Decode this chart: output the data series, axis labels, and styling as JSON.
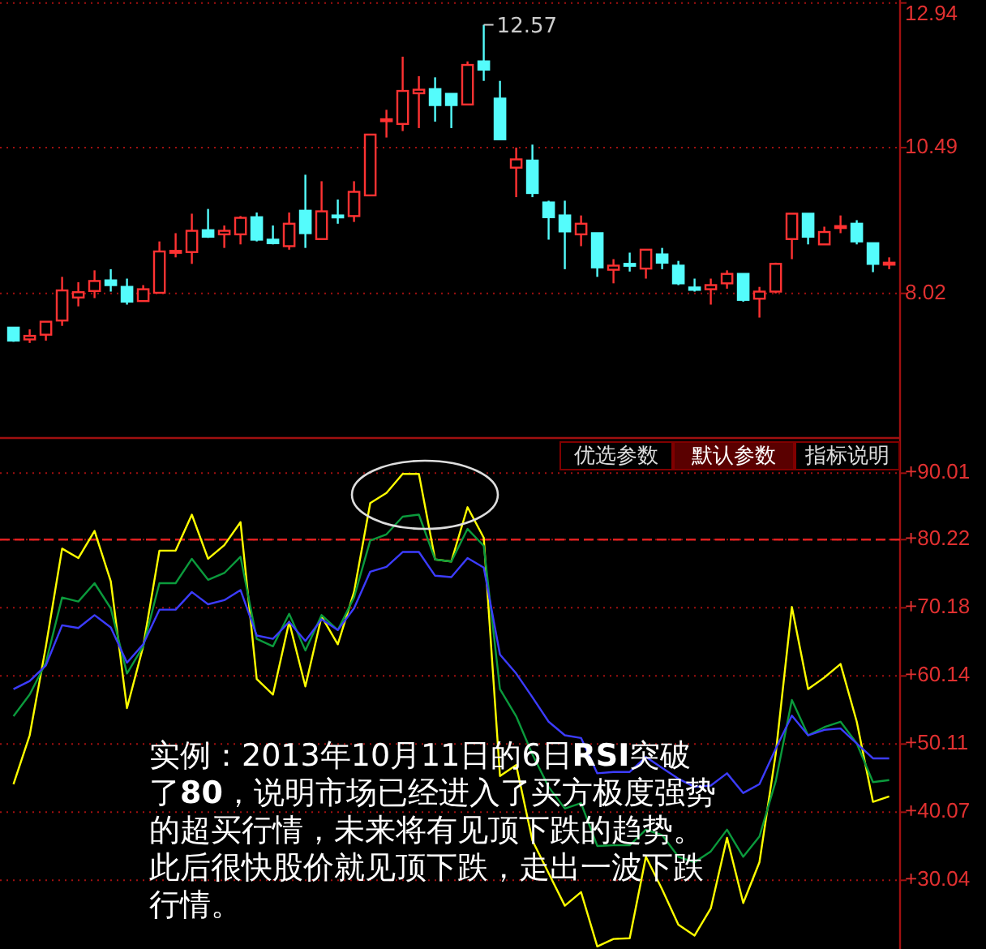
{
  "chart_data": [
    {
      "type": "candlestick",
      "categories": [
        null,
        null,
        null,
        null,
        null,
        null,
        null,
        null,
        null,
        null,
        null,
        null,
        null,
        null,
        null,
        null,
        null,
        null,
        null,
        null,
        null,
        null,
        null,
        null,
        null,
        null,
        null,
        null,
        null,
        null,
        null,
        null,
        null,
        null,
        null,
        null,
        null,
        null,
        null,
        null,
        null,
        null,
        null,
        null,
        null,
        null,
        null,
        null,
        null,
        null,
        null,
        null,
        null,
        null,
        null
      ],
      "ohlc": [
        [
          7.44,
          7.44,
          7.2,
          7.22
        ],
        [
          7.24,
          7.41,
          7.18,
          7.3
        ],
        [
          7.32,
          7.54,
          7.22,
          7.54
        ],
        [
          7.56,
          8.3,
          7.47,
          8.07
        ],
        [
          7.95,
          8.21,
          7.8,
          8.04
        ],
        [
          8.06,
          8.41,
          7.94,
          8.23
        ],
        [
          8.24,
          8.43,
          8.05,
          8.16
        ],
        [
          8.13,
          8.27,
          7.83,
          7.88
        ],
        [
          7.89,
          8.16,
          7.89,
          8.09
        ],
        [
          8.03,
          8.9,
          8.03,
          8.73
        ],
        [
          8.73,
          9.04,
          8.63,
          8.74
        ],
        [
          8.72,
          9.37,
          8.52,
          9.08
        ],
        [
          9.09,
          9.45,
          8.96,
          8.98
        ],
        [
          9.02,
          9.17,
          8.79,
          9.08
        ],
        [
          9.02,
          9.33,
          8.85,
          9.3
        ],
        [
          9.31,
          9.39,
          8.9,
          8.93
        ],
        [
          8.93,
          9.17,
          8.85,
          8.87
        ],
        [
          8.82,
          9.39,
          8.76,
          9.2
        ],
        [
          9.42,
          10.03,
          8.79,
          9.04
        ],
        [
          8.94,
          9.92,
          8.94,
          9.41
        ],
        [
          9.34,
          9.61,
          9.2,
          9.32
        ],
        [
          9.33,
          9.92,
          9.23,
          9.74
        ],
        [
          9.68,
          10.71,
          9.68,
          10.71
        ],
        [
          10.94,
          11.13,
          10.66,
          10.97
        ],
        [
          10.89,
          12.03,
          10.77,
          11.45
        ],
        [
          11.41,
          11.7,
          10.82,
          11.47
        ],
        [
          11.48,
          11.68,
          10.93,
          11.21
        ],
        [
          11.4,
          11.4,
          10.82,
          11.21
        ],
        [
          11.22,
          11.95,
          11.22,
          11.89
        ],
        [
          11.95,
          12.57,
          11.62,
          11.81
        ],
        [
          11.32,
          11.62,
          10.63,
          10.63
        ],
        [
          10.15,
          10.49,
          9.65,
          10.29
        ],
        [
          10.27,
          10.54,
          9.65,
          9.72
        ],
        [
          9.56,
          9.59,
          8.93,
          9.31
        ],
        [
          9.34,
          9.59,
          8.43,
          9.07
        ],
        [
          9.02,
          9.34,
          8.82,
          9.2
        ],
        [
          9.04,
          9.04,
          8.3,
          8.46
        ],
        [
          8.42,
          8.6,
          8.19,
          8.49
        ],
        [
          8.52,
          8.71,
          8.39,
          8.51
        ],
        [
          8.44,
          8.76,
          8.27,
          8.76
        ],
        [
          8.68,
          8.79,
          8.43,
          8.54
        ],
        [
          8.49,
          8.57,
          8.16,
          8.19
        ],
        [
          8.12,
          8.27,
          8.05,
          8.08
        ],
        [
          8.09,
          8.27,
          7.83,
          8.16
        ],
        [
          8.19,
          8.41,
          8.1,
          8.35
        ],
        [
          8.35,
          8.35,
          7.88,
          7.91
        ],
        [
          7.93,
          8.13,
          7.61,
          8.05
        ],
        [
          8.05,
          8.54,
          8.02,
          8.52
        ],
        [
          8.94,
          9.37,
          8.6,
          9.37
        ],
        [
          9.37,
          9.37,
          8.85,
          8.98
        ],
        [
          8.85,
          9.15,
          8.85,
          9.06
        ],
        [
          9.14,
          9.34,
          9.04,
          9.16
        ],
        [
          9.2,
          9.26,
          8.85,
          8.9
        ],
        [
          8.87,
          8.87,
          8.38,
          8.52
        ],
        [
          8.52,
          8.63,
          8.43,
          8.54
        ]
      ],
      "colors": [
        "#54fcfc",
        "#ff3232",
        "#ff3232",
        "#ff3232",
        "#ff3232",
        "#ff3232",
        "#54fcfc",
        "#54fcfc",
        "#ff3232",
        "#ff3232",
        "#ff3232",
        "#ff3232",
        "#54fcfc",
        "#ff3232",
        "#ff3232",
        "#54fcfc",
        "#54fcfc",
        "#ff3232",
        "#54fcfc",
        "#ff3232",
        "#54fcfc",
        "#ff3232",
        "#ff3232",
        "#ff3232",
        "#ff3232",
        "#ff3232",
        "#54fcfc",
        "#54fcfc",
        "#ff3232",
        "#54fcfc",
        "#54fcfc",
        "#ff3232",
        "#54fcfc",
        "#54fcfc",
        "#54fcfc",
        "#ff3232",
        "#54fcfc",
        "#ff3232",
        "#54fcfc",
        "#ff3232",
        "#54fcfc",
        "#54fcfc",
        "#54fcfc",
        "#ff3232",
        "#ff3232",
        "#54fcfc",
        "#ff3232",
        "#ff3232",
        "#ff3232",
        "#54fcfc",
        "#ff3232",
        "#ff3232",
        "#54fcfc",
        "#54fcfc",
        "#ff3232"
      ],
      "ylim": [
        5.57,
        12.99
      ],
      "yticks": [
        12.94,
        10.49,
        8.02
      ],
      "grid": "y",
      "tick_labels": "y",
      "annotations": [
        "12.57"
      ]
    },
    {
      "type": "line",
      "categories": [
        null,
        null,
        null,
        null,
        null,
        null,
        null,
        null,
        null,
        null,
        null,
        null,
        null,
        null,
        null,
        null,
        null,
        null,
        null,
        null,
        null,
        null,
        null,
        null,
        null,
        null,
        null,
        null,
        null,
        null,
        null,
        null,
        null,
        null,
        null,
        null,
        null,
        null,
        null,
        null,
        null,
        null,
        null,
        null,
        null,
        null,
        null,
        null,
        null,
        null,
        null,
        null,
        null,
        null,
        null
      ],
      "series": [
        {
          "color": "#ffff00",
          "values": [
            44.2,
            51.4,
            64.5,
            78.9,
            77.5,
            81.5,
            74.1,
            55.4,
            64.5,
            78.6,
            78.6,
            83.9,
            77.4,
            79.4,
            82.8,
            59.7,
            57.4,
            68.1,
            58.6,
            68.9,
            64.8,
            72.5,
            85.6,
            87.1,
            89.9,
            89.9,
            77.3,
            77.0,
            85.0,
            80.5,
            45.4,
            47.0,
            35.9,
            31.1,
            26.3,
            28.3,
            20.3,
            21.4,
            21.5,
            33.5,
            28.7,
            23.5,
            21.9,
            25.9,
            36.3,
            26.7,
            32.7,
            48.6,
            70.3,
            58.2,
            59.9,
            61.9,
            53.4,
            41.6,
            42.4
          ]
        },
        {
          "color": "#0b9a3c",
          "values": [
            54.2,
            57.4,
            62.1,
            71.7,
            71.1,
            73.8,
            70.1,
            60.5,
            64.5,
            73.8,
            73.8,
            77.4,
            74.3,
            75.3,
            77.7,
            65.6,
            64.5,
            69.3,
            63.9,
            69.1,
            66.9,
            71.7,
            80.1,
            81.0,
            83.6,
            83.9,
            77.3,
            77.0,
            81.8,
            79.3,
            58.2,
            54.2,
            48.6,
            43.8,
            40.6,
            41.4,
            35.1,
            35.2,
            35.2,
            37.5,
            36.7,
            33.5,
            32.7,
            34.3,
            37.5,
            33.5,
            36.5,
            44.6,
            56.6,
            51.4,
            52.6,
            53.4,
            50.2,
            44.5,
            44.8
          ]
        },
        {
          "color": "#3c3cff",
          "values": [
            58.2,
            59.4,
            61.7,
            67.6,
            67.2,
            69.1,
            67.3,
            62.1,
            64.8,
            69.9,
            69.9,
            72.5,
            70.7,
            71.3,
            72.8,
            66.1,
            65.6,
            68.1,
            65.3,
            68.5,
            66.9,
            70.1,
            75.5,
            76.2,
            78.4,
            78.4,
            74.9,
            74.7,
            77.5,
            76.1,
            63.3,
            60.5,
            57.0,
            53.4,
            51.4,
            51.0,
            45.8,
            46.0,
            46.0,
            48.2,
            46.6,
            45.0,
            43.8,
            44.0,
            45.8,
            42.9,
            44.2,
            49.4,
            54.3,
            51.4,
            52.2,
            52.4,
            50.2,
            48.0,
            48.0
          ]
        }
      ],
      "ylim": [
        19.92,
        94.95
      ],
      "yticks": [
        {
          "value": 90.01,
          "label": "+90.01"
        },
        {
          "value": 80.22,
          "label": "+80.22"
        },
        {
          "value": 70.18,
          "label": "+70.18"
        },
        {
          "value": 60.14,
          "label": "+60.14"
        },
        {
          "value": 50.11,
          "label": "+50.11"
        },
        {
          "value": 40.07,
          "label": "+40.07"
        },
        {
          "value": 30.04,
          "label": "+30.04"
        }
      ],
      "grid": "y",
      "tick_labels": "y",
      "line_style": "solid",
      "marker": "none",
      "ref_lines": [
        {
          "axis": "y",
          "value": 80.22,
          "color": "#e02020",
          "line_style": "dashed"
        }
      ],
      "annotations": [
        "优选参数",
        "默认参数",
        "指标说明",
        "实例：2013年10月11日的6日**RSI**突破了**80**，说明市场已经进入了买方极度强势的超买行情，未来将有见顶下跌的趋势。此后很快股价就见顶下跌，走出一波下跌行情。"
      ]
    }
  ]
}
